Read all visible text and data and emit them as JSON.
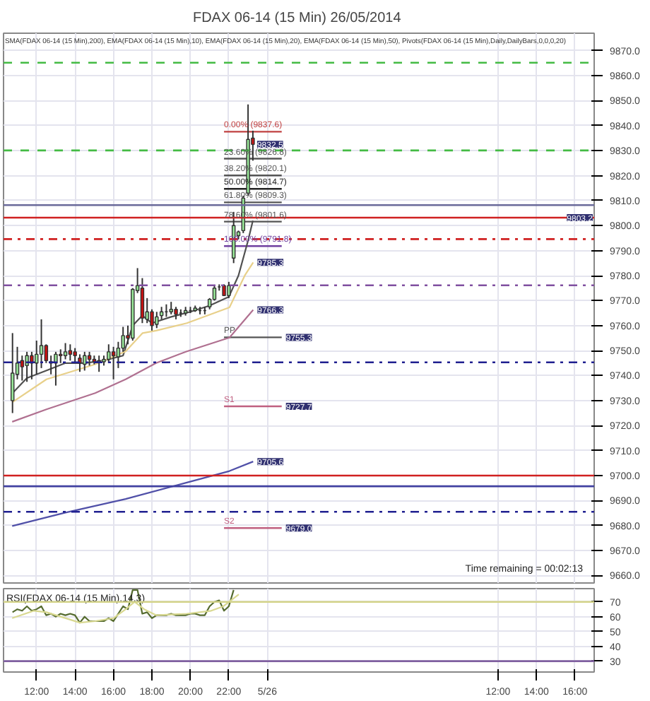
{
  "chart_data": [
    {
      "type": "candlestick",
      "title": "FDAX 06-14 (15 Min)  26/05/2014",
      "subtitle": "SMA(FDAX 06-14 (15 Min),200), EMA(FDAX 06-14 (15 Min),10), EMA(FDAX 06-14 (15 Min),20), EMA(FDAX 06-14 (15 Min),50), Pivots(FDAX 06-14 (15 Min),Daily,DailyBars,0,0,0,20)",
      "x": [
        "2014-05-25T10:45",
        "2014-05-25T11:00",
        "2014-05-25T11:15",
        "2014-05-25T11:30",
        "2014-05-25T11:45",
        "2014-05-25T12:00",
        "2014-05-25T12:15",
        "2014-05-25T12:30",
        "2014-05-25T12:45",
        "2014-05-25T13:00",
        "2014-05-25T13:15",
        "2014-05-25T13:30",
        "2014-05-25T13:45",
        "2014-05-25T14:00",
        "2014-05-25T14:15",
        "2014-05-25T14:30",
        "2014-05-25T14:45",
        "2014-05-25T15:00",
        "2014-05-25T15:15",
        "2014-05-25T15:30",
        "2014-05-25T15:45",
        "2014-05-25T16:00",
        "2014-05-25T16:15",
        "2014-05-25T16:30",
        "2014-05-25T16:45",
        "2014-05-25T17:00",
        "2014-05-25T17:15",
        "2014-05-25T17:30",
        "2014-05-25T17:45",
        "2014-05-25T18:00",
        "2014-05-25T18:15",
        "2014-05-25T18:30",
        "2014-05-25T18:45",
        "2014-05-25T19:00",
        "2014-05-25T19:15",
        "2014-05-25T19:30",
        "2014-05-25T19:45",
        "2014-05-25T20:00",
        "2014-05-25T20:15",
        "2014-05-25T20:30",
        "2014-05-25T20:45",
        "2014-05-25T21:00",
        "2014-05-25T21:15",
        "2014-05-25T21:30",
        "2014-05-25T21:45",
        "2014-05-25T22:00",
        "2014-05-25T22:15",
        "2014-05-25T22:30",
        "2014-05-25T22:45",
        "2014-05-25T23:00",
        "2014-05-25T23:15"
      ],
      "ohlc": [
        [
          9730,
          9757,
          9725,
          9741
        ],
        [
          9740.5,
          9751.5,
          9738.5,
          9745
        ],
        [
          9746,
          9748,
          9738,
          9743.5
        ],
        [
          9744,
          9749.5,
          9737.5,
          9748
        ],
        [
          9748,
          9749.5,
          9738.5,
          9745
        ],
        [
          9745,
          9754,
          9740.5,
          9748.5
        ],
        [
          9748.5,
          9762.5,
          9743,
          9752
        ],
        [
          9752,
          9752.5,
          9745,
          9746
        ],
        [
          9745,
          9748,
          9740.5,
          9745.5
        ],
        [
          9745,
          9749.5,
          9736,
          9748.5
        ],
        [
          9748.5,
          9750.5,
          9745,
          9748
        ],
        [
          9748,
          9753,
          9746.5,
          9749.5
        ],
        [
          9750,
          9752.5,
          9746,
          9748.5
        ],
        [
          9749.5,
          9751,
          9745.5,
          9748
        ],
        [
          9747,
          9748.5,
          9741.5,
          9745
        ],
        [
          9744.5,
          9749.5,
          9742,
          9748
        ],
        [
          9748,
          9749.5,
          9744,
          9746.5
        ],
        [
          9746.5,
          9748,
          9744.5,
          9745.5
        ],
        [
          9745.5,
          9748,
          9741.5,
          9746
        ],
        [
          9745.5,
          9748,
          9744,
          9746.5
        ],
        [
          9746.5,
          9752.5,
          9745,
          9749.5
        ],
        [
          9749.5,
          9751.5,
          9738.5,
          9748
        ],
        [
          9747.5,
          9753.5,
          9743,
          9751
        ],
        [
          9751,
          9759.5,
          9749.5,
          9756
        ],
        [
          9756,
          9760,
          9752.5,
          9755
        ],
        [
          9755,
          9775,
          9754,
          9774.5
        ],
        [
          9774,
          9783,
          9773,
          9776
        ],
        [
          9775,
          9779,
          9761,
          9763
        ],
        [
          9762.5,
          9771,
          9761,
          9765.5
        ],
        [
          9765.5,
          9766.5,
          9758,
          9760
        ],
        [
          9760.5,
          9765.5,
          9759,
          9763.5
        ],
        [
          9764,
          9767.5,
          9762.5,
          9765.5
        ],
        [
          9765.5,
          9768.5,
          9763.5,
          9765.5
        ],
        [
          9765.5,
          9769.5,
          9764.5,
          9766.5
        ],
        [
          9766.5,
          9767.5,
          9762.5,
          9764.5
        ],
        [
          9765,
          9766.5,
          9763.5,
          9765
        ],
        [
          9765,
          9767.5,
          9764,
          9766
        ],
        [
          9766,
          9767.5,
          9765,
          9766
        ],
        [
          9766,
          9768,
          9765.5,
          9767
        ],
        [
          9766,
          9767.5,
          9764.5,
          9766
        ],
        [
          9766,
          9767.5,
          9764.5,
          9766
        ],
        [
          9767.5,
          9771,
          9766.5,
          9770.5
        ],
        [
          9770.5,
          9776,
          9770,
          9775
        ],
        [
          9775.5,
          9776.5,
          9774,
          9775.5
        ],
        [
          9776,
          9776.5,
          9772,
          9772
        ],
        [
          9772,
          9777.5,
          9771,
          9776
        ],
        [
          9787,
          9805.5,
          9785,
          9800
        ],
        [
          9796,
          9798,
          9794.5,
          9797.5
        ],
        [
          9798,
          9812,
          9797,
          9811
        ],
        [
          9813,
          9848.5,
          9812,
          9834.5
        ],
        [
          9835,
          9838,
          9826,
          9832.5
        ]
      ],
      "series": [
        {
          "type": "line",
          "color": "#505050",
          "x": [
            "2014-05-25T10:45",
            "2014-05-25T11:30",
            "2014-05-25T12:30",
            "2014-05-25T13:30",
            "2014-05-25T14:30",
            "2014-05-25T15:30",
            "2014-05-25T16:30",
            "2014-05-25T17:00",
            "2014-05-25T17:30",
            "2014-05-25T18:00",
            "2014-05-25T19:00",
            "2014-05-25T20:00",
            "2014-05-25T21:00",
            "2014-05-25T22:00",
            "2014-05-25T22:30",
            "2014-05-25T23:00",
            "2014-05-25T23:15"
          ],
          "values": [
            9733,
            9739,
            9742,
            9745,
            9745,
            9746,
            9748,
            9760,
            9764,
            9761,
            9763.5,
            9765.5,
            9768,
            9771.5,
            9780,
            9794,
            9802
          ]
        },
        {
          "type": "line",
          "color": "#e8d08a",
          "x": [
            "2014-05-25T10:44",
            "2014-05-25T12:31",
            "2014-05-25T15:03",
            "2014-05-25T16:38",
            "2014-05-25T17:31",
            "2014-05-25T18:13",
            "2014-05-25T19:49",
            "2014-05-25T22:02",
            "2014-05-25T22:50",
            "2014-05-25T23:16"
          ],
          "values": [
            9729.3,
            9738.5,
            9744.5,
            9749.7,
            9757,
            9758,
            9761,
            9767.3,
            9780.1,
            9785.3
          ]
        },
        {
          "type": "line",
          "color": "#b07090",
          "x": [
            "2014-05-25T10:44",
            "2014-05-25T12:31",
            "2014-05-25T15:03",
            "2014-05-25T16:38",
            "2014-05-25T18:13",
            "2014-05-25T19:49",
            "2014-05-25T22:02",
            "2014-05-25T23:16"
          ],
          "values": [
            9721.5,
            9726.5,
            9733,
            9738.5,
            9745,
            9749.7,
            9755.2,
            9766.3
          ]
        },
        {
          "type": "line",
          "color": "#5050a8",
          "x": [
            "2014-05-25T10:44",
            "2014-05-25T13:28",
            "2014-05-25T16:38",
            "2014-05-25T19:49",
            "2014-05-25T22:02",
            "2014-05-25T23:16"
          ],
          "values": [
            9679.8,
            9685.1,
            9690.6,
            9697.2,
            9701.8,
            9705.6
          ]
        }
      ],
      "ref_lines": [
        {
          "axis": "y",
          "value": 9865.2,
          "color": "#44bb44",
          "line_style": "dashed"
        },
        {
          "axis": "y",
          "value": 9830.1,
          "color": "#44bb44",
          "line_style": "dashed"
        },
        {
          "axis": "y",
          "value": 9808.2,
          "color": "#6a6a9a",
          "line_style": "solid"
        },
        {
          "axis": "y",
          "value": 9803.2,
          "color": "#d02020",
          "line_style": "solid"
        },
        {
          "axis": "y",
          "value": 9794.6,
          "color": "#d02020",
          "line_style": "dashdot"
        },
        {
          "axis": "y",
          "value": 9776.1,
          "color": "#8050a0",
          "line_style": "dashdot"
        },
        {
          "axis": "y",
          "value": 9745.3,
          "color": "#202090",
          "line_style": "dashdot"
        },
        {
          "axis": "y",
          "value": 9700,
          "color": "#d02020",
          "line_style": "solid"
        },
        {
          "axis": "y",
          "value": 9695.7,
          "color": "#4040a0",
          "line_style": "solid"
        },
        {
          "axis": "y",
          "value": 9685.5,
          "color": "#202090",
          "line_style": "dashdot"
        },
        {
          "axis": "y",
          "value": 9837.6,
          "label": "0.00% (9837.6)",
          "color": "#c04040"
        },
        {
          "axis": "y",
          "value": 9826.8,
          "label": "23.60% (9826.8)",
          "color": "#555555"
        },
        {
          "axis": "y",
          "value": 9820.1,
          "label": "38.20% (9820.1)",
          "color": "#555555"
        },
        {
          "axis": "y",
          "value": 9814.7,
          "label": "50.00% (9814.7)",
          "color": "#222222"
        },
        {
          "axis": "y",
          "value": 9809.3,
          "label": "61.80% (9809.3)",
          "color": "#555555"
        },
        {
          "axis": "y",
          "value": 9801.6,
          "label": "78.60% (9801.6)",
          "color": "#555555"
        },
        {
          "axis": "y",
          "value": 9791.8,
          "label": "100.00% (9791.8)",
          "color": "#7040a0"
        },
        {
          "axis": "y",
          "value": 9755.3,
          "label": "PP",
          "color": "#555555"
        },
        {
          "axis": "y",
          "value": 9727.7,
          "label": "S1",
          "color": "#c06080"
        },
        {
          "axis": "y",
          "value": 9679.0,
          "label": "S2",
          "color": "#c06080"
        }
      ],
      "annotations": [
        {
          "text": "9832.5",
          "x": "2014-05-25T23:15",
          "y": 9832.5
        },
        {
          "text": "9803.2",
          "x": "2014-05-26T17:00",
          "y": 9803.2
        },
        {
          "text": "9785.3",
          "x": "2014-05-25T23:16",
          "y": 9785.3
        },
        {
          "text": "9766.3",
          "x": "2014-05-25T23:16",
          "y": 9766.3
        },
        {
          "text": "9755.3",
          "x": "2014-05-26T00:45",
          "y": 9755.3
        },
        {
          "text": "9727.7",
          "x": "2014-05-26T00:45",
          "y": 9727.7
        },
        {
          "text": "9705.6",
          "x": "2014-05-25T23:16",
          "y": 9705.6
        },
        {
          "text": "9679.0",
          "x": "2014-05-26T00:45",
          "y": 9679.0
        },
        "Time remaining = 00:02:13"
      ],
      "xlim": [
        "2014-05-25T10:17",
        "2014-05-26T17:00"
      ],
      "xticks": [
        {
          "value": "2014-05-25T12:00",
          "label": null
        },
        {
          "value": "2014-05-25T14:00",
          "label": null
        },
        {
          "value": "2014-05-25T16:00",
          "label": null
        },
        {
          "value": "2014-05-25T18:00",
          "label": null
        },
        {
          "value": "2014-05-25T20:00",
          "label": null
        },
        {
          "value": "2014-05-25T22:00",
          "label": null
        },
        {
          "value": "2014-05-26T00:00",
          "label": null
        },
        {
          "value": "2014-05-26T12:00",
          "label": null
        },
        {
          "value": "2014-05-26T14:00",
          "label": null
        },
        {
          "value": "2014-05-26T16:00",
          "label": null
        }
      ],
      "ylim": [
        9657,
        9877
      ],
      "yticks": [
        {
          "value": 9660,
          "label": "9660.0"
        },
        {
          "value": 9670,
          "label": "9670.0"
        },
        {
          "value": 9680,
          "label": "9680.0"
        },
        {
          "value": 9690,
          "label": "9690.0"
        },
        {
          "value": 9700,
          "label": "9700.0"
        },
        {
          "value": 9710,
          "label": "9710.0"
        },
        {
          "value": 9720,
          "label": "9720.0"
        },
        {
          "value": 9730,
          "label": "9730.0"
        },
        {
          "value": 9740,
          "label": "9740.0"
        },
        {
          "value": 9750,
          "label": "9750.0"
        },
        {
          "value": 9760,
          "label": "9760.0"
        },
        {
          "value": 9770,
          "label": "9770.0"
        },
        {
          "value": 9780,
          "label": "9780.0"
        },
        {
          "value": 9790,
          "label": "9790.0"
        },
        {
          "value": 9800,
          "label": "9800.0"
        },
        {
          "value": 9810,
          "label": "9810.0"
        },
        {
          "value": 9820,
          "label": "9820.0"
        },
        {
          "value": 9830,
          "label": "9830.0"
        },
        {
          "value": 9840,
          "label": "9840.0"
        },
        {
          "value": 9850,
          "label": "9850.0"
        },
        {
          "value": 9860,
          "label": "9860.0"
        },
        {
          "value": 9870,
          "label": "9870.0"
        }
      ],
      "grid": true,
      "tick_labels": "y"
    },
    {
      "type": "line",
      "title": "RSI(FDAX 06-14 (15 Min),14,3)",
      "series": [
        {
          "color": "#556b2f",
          "x": [
            "2014-05-25T10:45",
            "2014-05-25T11:00",
            "2014-05-25T11:15",
            "2014-05-25T11:30",
            "2014-05-25T11:45",
            "2014-05-25T12:00",
            "2014-05-25T12:15",
            "2014-05-25T12:30",
            "2014-05-25T12:45",
            "2014-05-25T13:00",
            "2014-05-25T13:15",
            "2014-05-25T13:30",
            "2014-05-25T13:45",
            "2014-05-25T14:00",
            "2014-05-25T14:15",
            "2014-05-25T14:30",
            "2014-05-25T14:45",
            "2014-05-25T15:00",
            "2014-05-25T15:15",
            "2014-05-25T15:30",
            "2014-05-25T15:45",
            "2014-05-25T16:00",
            "2014-05-25T16:15",
            "2014-05-25T16:30",
            "2014-05-25T16:45",
            "2014-05-25T17:00",
            "2014-05-25T17:15",
            "2014-05-25T17:30",
            "2014-05-25T17:45",
            "2014-05-25T18:00",
            "2014-05-25T18:15",
            "2014-05-25T18:30",
            "2014-05-25T18:45",
            "2014-05-25T19:00",
            "2014-05-25T19:15",
            "2014-05-25T19:30",
            "2014-05-25T19:45",
            "2014-05-25T20:00",
            "2014-05-25T20:15",
            "2014-05-25T20:30",
            "2014-05-25T20:45",
            "2014-05-25T21:00",
            "2014-05-25T21:15",
            "2014-05-25T21:30",
            "2014-05-25T21:45",
            "2014-05-25T22:00",
            "2014-05-25T22:15"
          ],
          "values": [
            63,
            65,
            64,
            67,
            64,
            65,
            67,
            61,
            62,
            60,
            62,
            61,
            62,
            61,
            56,
            60,
            57,
            57,
            57,
            57,
            59,
            57,
            62,
            67,
            65,
            78,
            78,
            62,
            63,
            59,
            61,
            61,
            61,
            62,
            61,
            61,
            61,
            62,
            62,
            61,
            61,
            67,
            70,
            71,
            64,
            67,
            78
          ]
        },
        {
          "color": "#d8d890",
          "x": [
            "2014-05-25T10:44",
            "2014-05-25T11:52",
            "2014-05-25T12:31",
            "2014-05-25T14:15",
            "2014-05-25T15:03",
            "2014-05-25T16:00",
            "2014-05-25T16:38",
            "2014-05-25T17:06",
            "2014-05-25T17:36",
            "2014-05-25T18:13",
            "2014-05-25T19:49",
            "2014-05-25T21:05",
            "2014-05-25T21:43",
            "2014-05-25T22:31"
          ],
          "values": [
            59,
            64,
            63,
            56,
            57,
            59,
            65,
            70,
            65,
            61,
            62,
            64,
            67,
            75
          ]
        }
      ],
      "ref_lines": [
        {
          "axis": "y",
          "value": 70,
          "color": "#d4d48a",
          "line_style": "solid"
        },
        {
          "axis": "y",
          "value": 30,
          "color": "#8060a0",
          "line_style": "solid"
        }
      ],
      "xlim": [
        "2014-05-25T10:17",
        "2014-05-26T17:00"
      ],
      "xticks": [
        {
          "value": "2014-05-25T12:00",
          "label": "12:00"
        },
        {
          "value": "2014-05-25T14:00",
          "label": "14:00"
        },
        {
          "value": "2014-05-25T16:00",
          "label": "16:00"
        },
        {
          "value": "2014-05-25T18:00",
          "label": "18:00"
        },
        {
          "value": "2014-05-25T20:00",
          "label": "20:00"
        },
        {
          "value": "2014-05-25T22:00",
          "label": "22:00"
        },
        {
          "value": "2014-05-26T00:00",
          "label": "5/26"
        },
        {
          "value": "2014-05-26T12:00",
          "label": "12:00"
        },
        {
          "value": "2014-05-26T14:00",
          "label": "14:00"
        },
        {
          "value": "2014-05-26T16:00",
          "label": "16:00"
        }
      ],
      "ylim": [
        22.7,
        78.9
      ],
      "yticks": [
        30,
        40,
        50,
        60,
        70
      ],
      "grid": true
    }
  ]
}
